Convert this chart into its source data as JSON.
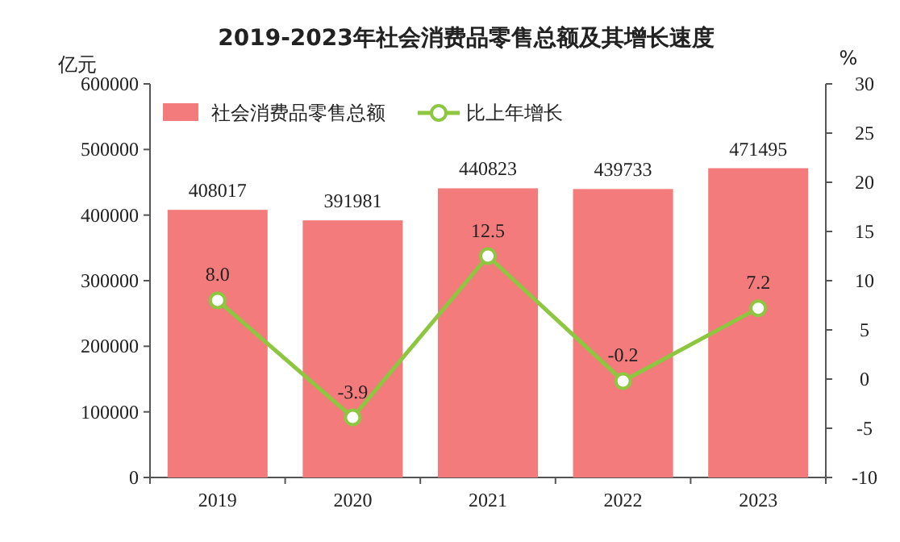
{
  "chart_data": {
    "type": "bar",
    "title": "2019-2023年社会消费品零售总额及其增长速度",
    "ylabel": "亿元",
    "y2label": "%",
    "categories": [
      "2019",
      "2020",
      "2021",
      "2022",
      "2023"
    ],
    "ylim": [
      0,
      600000
    ],
    "yticks": [
      0,
      100000,
      200000,
      300000,
      400000,
      500000,
      600000
    ],
    "y2lim": [
      -10,
      30
    ],
    "y2ticks": [
      -10,
      -5,
      0,
      5,
      10,
      15,
      20,
      25,
      30
    ],
    "legend": "top left",
    "grid": false,
    "series": [
      {
        "name": "社会消费品零售总额",
        "color": "#f47b7b",
        "values": [
          408017,
          391981,
          440823,
          439733,
          471495
        ],
        "value_labels": [
          "408017",
          "391981",
          "440823",
          "439733",
          "471495"
        ]
      },
      {
        "name": "比上年增长",
        "type": "line",
        "axis": "y2",
        "color": "#8dc63f",
        "marker": "circle",
        "values": [
          8.0,
          -3.9,
          12.5,
          -0.2,
          7.2
        ],
        "value_labels": [
          "8.0",
          "-3.9",
          "12.5",
          "-0.2",
          "7.2"
        ]
      }
    ]
  }
}
